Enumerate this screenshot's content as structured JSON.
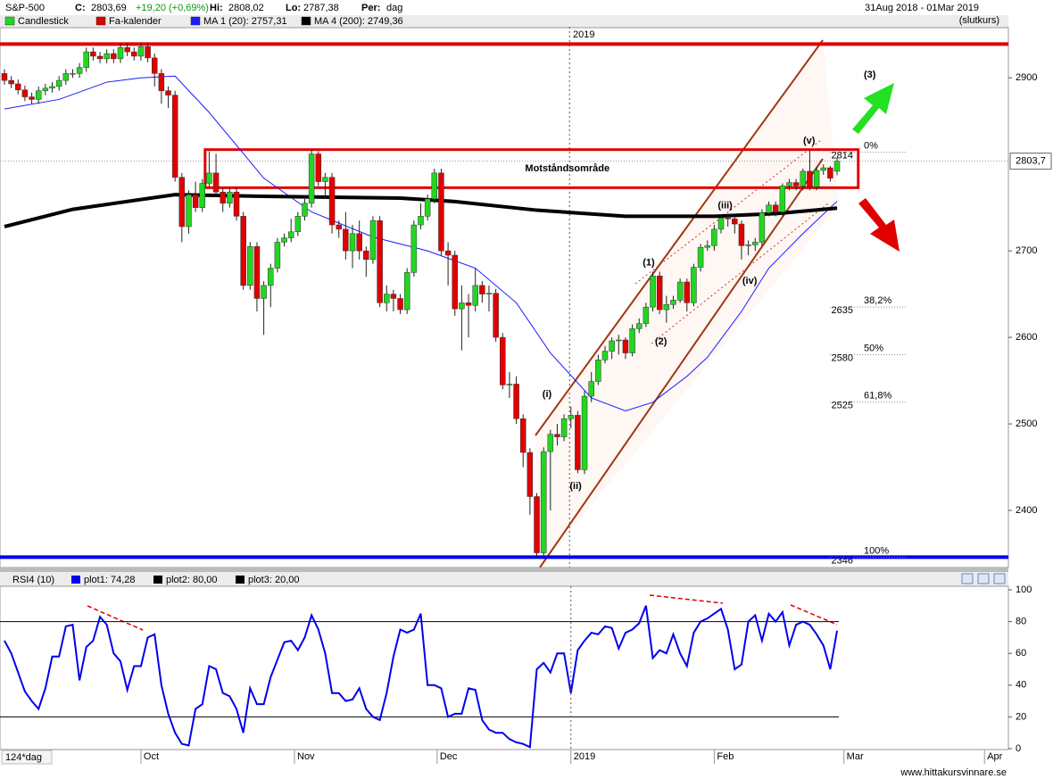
{
  "header": {
    "symbol": "S&P-500",
    "close_label": "C:",
    "close": "2803,69",
    "change": "+19,20 (+0,69%)",
    "high_label": "Hi:",
    "high": "2808,02",
    "low_label": "Lo:",
    "low": "2787,38",
    "period_label": "Per:",
    "period": "dag",
    "range": "31Aug 2018 - 01Mar 2019",
    "mode": "(slutkurs)",
    "days": "124*dag",
    "footer": "www.hittakursvinnare.se"
  },
  "chart_data": [
    {
      "type": "candlestick",
      "legend": [
        {
          "name": "Candlestick",
          "color": "#22d622"
        },
        {
          "name": "Fa-kalender",
          "color": "#e00000"
        }
      ],
      "up_color": "#22d622",
      "down_color": "#e00000",
      "open": [
        2905,
        2897,
        2893,
        2886,
        2878,
        2875,
        2885,
        2888,
        2890,
        2897,
        2905,
        2905,
        2912,
        2930,
        2925,
        2922,
        2928,
        2922,
        2935,
        2930,
        2925,
        2936,
        2923,
        2905,
        2885,
        2880,
        2785,
        2728,
        2765,
        2750,
        2778,
        2790,
        2768,
        2755,
        2768,
        2740,
        2660,
        2705,
        2645,
        2660,
        2680,
        2710,
        2715,
        2722,
        2740,
        2755,
        2812,
        2780,
        2785,
        2730,
        2725,
        2700,
        2720,
        2700,
        2690,
        2735,
        2640,
        2650,
        2645,
        2632,
        2675,
        2730,
        2740,
        2760,
        2790,
        2700,
        2695,
        2633,
        2640,
        2637,
        2660,
        2650,
        2651,
        2600,
        2545,
        2546,
        2506,
        2467,
        2416,
        2351,
        2468,
        2488,
        2485,
        2506,
        2510,
        2447,
        2532,
        2549,
        2574,
        2584,
        2596,
        2597,
        2582,
        2610,
        2616,
        2635,
        2671,
        2632,
        2638,
        2643,
        2664,
        2640,
        2681,
        2704,
        2706,
        2725,
        2738,
        2737,
        2731,
        2706,
        2707,
        2710,
        2744,
        2753,
        2745,
        2775,
        2779,
        2775,
        2792,
        2774,
        2793,
        2796,
        2792
      ],
      "high": [
        2910,
        2902,
        2898,
        2891,
        2883,
        2890,
        2893,
        2895,
        2902,
        2910,
        2910,
        2917,
        2935,
        2935,
        2930,
        2933,
        2933,
        2940,
        2940,
        2935,
        2941,
        2941,
        2928,
        2910,
        2890,
        2885,
        2790,
        2770,
        2780,
        2783,
        2815,
        2812,
        2773,
        2773,
        2773,
        2745,
        2710,
        2710,
        2665,
        2685,
        2715,
        2720,
        2737,
        2745,
        2760,
        2817,
        2815,
        2790,
        2790,
        2735,
        2745,
        2730,
        2735,
        2705,
        2740,
        2740,
        2660,
        2655,
        2650,
        2680,
        2735,
        2755,
        2765,
        2795,
        2795,
        2710,
        2700,
        2660,
        2650,
        2680,
        2665,
        2660,
        2656,
        2605,
        2560,
        2555,
        2511,
        2472,
        2420,
        2473,
        2493,
        2500,
        2511,
        2520,
        2515,
        2538,
        2560,
        2580,
        2590,
        2600,
        2603,
        2600,
        2615,
        2622,
        2640,
        2676,
        2676,
        2648,
        2648,
        2668,
        2668,
        2685,
        2708,
        2712,
        2730,
        2742,
        2742,
        2740,
        2735,
        2712,
        2715,
        2748,
        2757,
        2757,
        2778,
        2783,
        2783,
        2795,
        2816,
        2797,
        2800,
        2798,
        2808.02
      ],
      "low": [
        2892,
        2888,
        2881,
        2873,
        2870,
        2870,
        2880,
        2883,
        2885,
        2892,
        2900,
        2900,
        2907,
        2920,
        2917,
        2917,
        2917,
        2917,
        2925,
        2920,
        2920,
        2918,
        2890,
        2870,
        2865,
        2780,
        2710,
        2720,
        2745,
        2745,
        2773,
        2763,
        2745,
        2750,
        2735,
        2655,
        2655,
        2630,
        2603,
        2635,
        2675,
        2705,
        2710,
        2717,
        2735,
        2750,
        2775,
        2760,
        2720,
        2715,
        2690,
        2680,
        2690,
        2670,
        2685,
        2635,
        2630,
        2630,
        2627,
        2627,
        2670,
        2725,
        2735,
        2755,
        2695,
        2660,
        2625,
        2585,
        2600,
        2630,
        2640,
        2630,
        2595,
        2540,
        2530,
        2500,
        2450,
        2395,
        2346,
        2347,
        2400,
        2475,
        2480,
        2495,
        2443,
        2442,
        2525,
        2545,
        2570,
        2575,
        2580,
        2575,
        2578,
        2605,
        2612,
        2630,
        2627,
        2617,
        2633,
        2640,
        2630,
        2636,
        2676,
        2700,
        2700,
        2720,
        2728,
        2720,
        2690,
        2695,
        2700,
        2705,
        2740,
        2740,
        2740,
        2770,
        2770,
        2770,
        2770,
        2770,
        2788,
        2780,
        2787.38
      ],
      "close": [
        2897,
        2893,
        2886,
        2878,
        2875,
        2885,
        2888,
        2890,
        2897,
        2905,
        2905,
        2912,
        2930,
        2925,
        2922,
        2928,
        2922,
        2935,
        2930,
        2925,
        2936,
        2923,
        2905,
        2885,
        2880,
        2785,
        2728,
        2765,
        2750,
        2778,
        2790,
        2768,
        2755,
        2768,
        2740,
        2660,
        2705,
        2645,
        2660,
        2680,
        2710,
        2715,
        2722,
        2740,
        2755,
        2812,
        2780,
        2785,
        2730,
        2725,
        2700,
        2720,
        2700,
        2690,
        2735,
        2640,
        2650,
        2645,
        2632,
        2675,
        2730,
        2740,
        2760,
        2790,
        2700,
        2695,
        2633,
        2640,
        2637,
        2660,
        2650,
        2651,
        2600,
        2545,
        2546,
        2506,
        2467,
        2416,
        2351,
        2468,
        2488,
        2485,
        2506,
        2510,
        2447,
        2532,
        2549,
        2574,
        2584,
        2596,
        2597,
        2582,
        2610,
        2616,
        2635,
        2671,
        2632,
        2638,
        2643,
        2664,
        2640,
        2681,
        2704,
        2706,
        2725,
        2738,
        2737,
        2731,
        2706,
        2707,
        2710,
        2744,
        2753,
        2745,
        2775,
        2779,
        2775,
        2792,
        2774,
        2793,
        2796,
        2784,
        2803.69
      ],
      "series": [
        {
          "name": "MA 1 (20): 2757,31",
          "color": "#1a1aff",
          "x": [
            0,
            8,
            15,
            20,
            25,
            30,
            38,
            45,
            54,
            62,
            69,
            75,
            80,
            86,
            91,
            95,
            100,
            103,
            108,
            112,
            117,
            122
          ],
          "values": [
            2864,
            2875,
            2895,
            2900,
            2902,
            2860,
            2784,
            2745,
            2716,
            2700,
            2680,
            2640,
            2582,
            2530,
            2515,
            2525,
            2555,
            2577,
            2630,
            2680,
            2720,
            2757.31
          ]
        },
        {
          "name": "MA 4 (200): 2749,36",
          "color": "#000000",
          "x": [
            0,
            10,
            25,
            38,
            58,
            66,
            78,
            91,
            104,
            113,
            122
          ],
          "values": [
            2728,
            2748,
            2765,
            2763,
            2761,
            2757,
            2747,
            2740,
            2740,
            2743,
            2749.36
          ]
        }
      ],
      "xlim": [
        -0.65,
        147.1
      ],
      "ylim": [
        2334,
        2959
      ],
      "yticks": [
        2400,
        2500,
        2600,
        2700,
        2900
      ],
      "xticks": [
        {
          "value": 82.8,
          "label": "2019"
        }
      ],
      "last_price": {
        "value": 2803.69,
        "label": "2803,7"
      },
      "hlines": [
        {
          "value": 2939,
          "color": "#e00000"
        },
        {
          "value": 2346,
          "color": "#0000ee"
        }
      ],
      "zone": {
        "label": "Motståndsområde",
        "from": 2773,
        "to": 2817,
        "x": [
          29.4,
          125.1
        ]
      },
      "fib_levels": [
        {
          "price": 2814,
          "percent": {
            "value": 0,
            "label": "0%"
          }
        },
        {
          "price": 2635,
          "percent": {
            "value": 38.2,
            "label": "38,2%"
          }
        },
        {
          "price": 2580,
          "percent": {
            "value": 50,
            "label": "50%"
          }
        },
        {
          "price": 2525,
          "percent": {
            "value": 61.8,
            "label": "61,8%"
          }
        },
        {
          "price": 2346,
          "percent": {
            "value": 100,
            "label": "100%"
          }
        }
      ],
      "annotations": [
        {
          "text": "(3)",
          "x": 126.8,
          "y": 2903,
          "color": "#e00000"
        },
        {
          "text": "(1)",
          "x": 94.4,
          "y": 2686,
          "color": "#1e1eb4"
        },
        {
          "text": "(2)",
          "x": 96.2,
          "y": 2595,
          "color": "#1e1eb4"
        },
        {
          "text": "(i)",
          "x": 79.5,
          "y": 2534,
          "color": "#1e1eb4"
        },
        {
          "text": "(ii)",
          "x": 83.7,
          "y": 2428,
          "color": "#1e1eb4"
        },
        {
          "text": "(iii)",
          "x": 105.6,
          "y": 2752,
          "color": "#1e1eb4"
        },
        {
          "text": "(iv)",
          "x": 109.2,
          "y": 2665,
          "color": "#1e1eb4"
        },
        {
          "text": "(v)",
          "x": 117.9,
          "y": 2827,
          "color": "#1e1eb4"
        }
      ]
    },
    {
      "type": "line",
      "title": "RSI4 (10)",
      "series": [
        {
          "name": "plot1: 74,28",
          "color": "#0000ee",
          "values": [
            68,
            60,
            48,
            36,
            30,
            25,
            38,
            58,
            58,
            77,
            78,
            43,
            64,
            68,
            83,
            78,
            60,
            55,
            37,
            52,
            52,
            70,
            72,
            40,
            22,
            10,
            3,
            2,
            25,
            28,
            52,
            50,
            35,
            33,
            25,
            10,
            38,
            28,
            28,
            45,
            56,
            67,
            68,
            62,
            70,
            84,
            75,
            60,
            35,
            35,
            30,
            31,
            38,
            25,
            20,
            18,
            35,
            58,
            75,
            73,
            75,
            85,
            40,
            40,
            38,
            20,
            22,
            22,
            38,
            37,
            18,
            12,
            10,
            10,
            6,
            4,
            3,
            1,
            50,
            54,
            48,
            60,
            60,
            35,
            62,
            68,
            73,
            72,
            77,
            76,
            63,
            73,
            75,
            79,
            90,
            57,
            62,
            60,
            72,
            60,
            52,
            73,
            80,
            82,
            85,
            88,
            75,
            50,
            53,
            80,
            84,
            68,
            85,
            80,
            86,
            65,
            78,
            80,
            78,
            72,
            65,
            50,
            74.28
          ]
        }
      ],
      "levels": [
        {
          "name": "plot2: 80,00",
          "value": 80,
          "color": "#000000"
        },
        {
          "name": "plot3: 20,00",
          "value": 20,
          "color": "#000000"
        }
      ],
      "xlim": [
        -0.65,
        147.1
      ],
      "ylim": [
        0,
        100
      ],
      "yticks": [
        0,
        20,
        40,
        60,
        80,
        100
      ],
      "xticks": [
        {
          "value": 20,
          "label": "Oct"
        },
        {
          "value": 42.5,
          "label": "Nov"
        },
        {
          "value": 63.4,
          "label": "Dec"
        },
        {
          "value": 83,
          "label": "2019"
        },
        {
          "value": 104,
          "label": "Feb"
        },
        {
          "value": 123,
          "label": "Mar"
        },
        {
          "value": 143.6,
          "label": "Apr"
        }
      ]
    }
  ]
}
